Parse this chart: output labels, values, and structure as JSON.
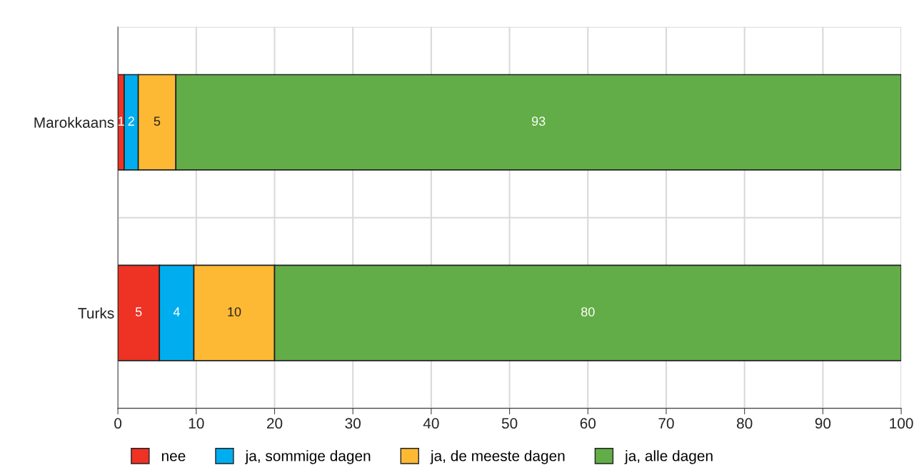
{
  "chart_data": {
    "type": "bar",
    "orientation": "horizontal",
    "stacked": true,
    "categories": [
      "Marokkaans",
      "Turks"
    ],
    "series": [
      {
        "name": "nee",
        "color": "#ee3224",
        "values": [
          0.8,
          5.3
        ],
        "value_labels": [
          "1",
          "5"
        ]
      },
      {
        "name": "ja, sommige dagen",
        "color": "#00aeef",
        "values": [
          1.8,
          4.4
        ],
        "value_labels": [
          "2",
          "4"
        ]
      },
      {
        "name": "ja, de meeste dagen",
        "color": "#fdb933",
        "values": [
          4.8,
          10.3
        ],
        "value_labels": [
          "5",
          "10"
        ]
      },
      {
        "name": "ja, alle dagen",
        "color": "#62ad47",
        "values": [
          92.6,
          80
        ],
        "value_labels": [
          "93",
          "80"
        ]
      }
    ],
    "xlim": [
      0,
      100
    ],
    "xticks": [
      0,
      10,
      20,
      30,
      40,
      50,
      60,
      70,
      80,
      90,
      100
    ],
    "grid": true,
    "legend": "bottom"
  }
}
